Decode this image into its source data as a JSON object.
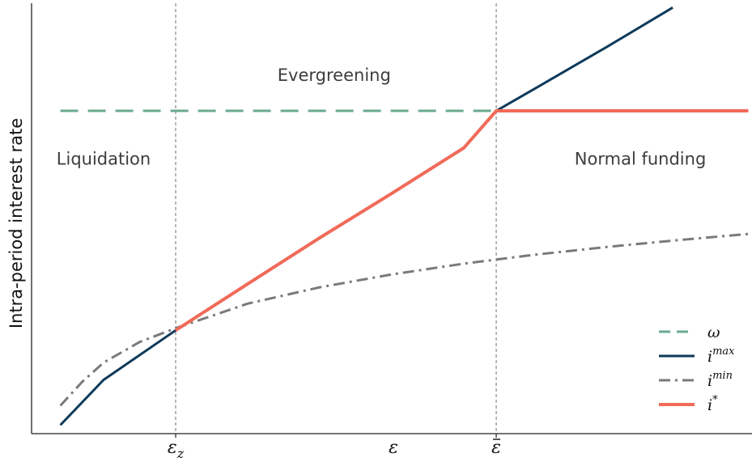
{
  "chart_data": {
    "type": "line",
    "title": "",
    "xlabel": "ε",
    "ylabel": "Intra-period interest rate",
    "xlim": [
      0,
      1
    ],
    "ylim": [
      0,
      1
    ],
    "grid": false,
    "legend_position": "bottom-right",
    "xticks": [
      {
        "x": 0.2,
        "label": "ε",
        "sub": "z",
        "bar": false
      },
      {
        "x": 0.645,
        "label": "ε",
        "sub": "",
        "bar": true
      }
    ],
    "vlines": [
      0.2,
      0.645
    ],
    "regions": [
      {
        "text": "Liquidation",
        "x": 0.1,
        "y": 0.625
      },
      {
        "text": "Evergreening",
        "x": 0.42,
        "y": 0.82
      },
      {
        "text": "Normal funding",
        "x": 0.845,
        "y": 0.625
      }
    ],
    "series": [
      {
        "name": "ω",
        "sup": "",
        "color": "#6aaa8f",
        "dash": "22,12",
        "width": 3,
        "x": [
          0.04,
          0.645
        ],
        "y": [
          0.75,
          0.75
        ]
      },
      {
        "name": "i",
        "sup": "max",
        "color": "#0e3a5a",
        "dash": "",
        "width": 3,
        "x": [
          0.04,
          0.1,
          0.2,
          0.3,
          0.4,
          0.5,
          0.6,
          0.645,
          0.7,
          0.8,
          0.89
        ],
        "y": [
          0.02,
          0.125,
          0.24,
          0.348,
          0.455,
          0.558,
          0.664,
          0.75,
          0.803,
          0.9,
          0.99
        ]
      },
      {
        "name": "i",
        "sup": "min",
        "color": "#7a7a7a",
        "dash": "14,6,3,6",
        "width": 3,
        "x": [
          0.04,
          0.07,
          0.1,
          0.15,
          0.2,
          0.3,
          0.4,
          0.5,
          0.6,
          0.7,
          0.8,
          0.9,
          0.995
        ],
        "y": [
          0.065,
          0.12,
          0.165,
          0.213,
          0.245,
          0.302,
          0.34,
          0.37,
          0.395,
          0.416,
          0.434,
          0.45,
          0.464
        ]
      },
      {
        "name": "i",
        "sup": "*",
        "color": "#f06a58",
        "dash": "",
        "width": 4,
        "x": [
          0.2,
          0.3,
          0.4,
          0.5,
          0.6,
          0.645,
          0.995
        ],
        "y": [
          0.24,
          0.348,
          0.455,
          0.558,
          0.664,
          0.75,
          0.75
        ]
      }
    ]
  }
}
